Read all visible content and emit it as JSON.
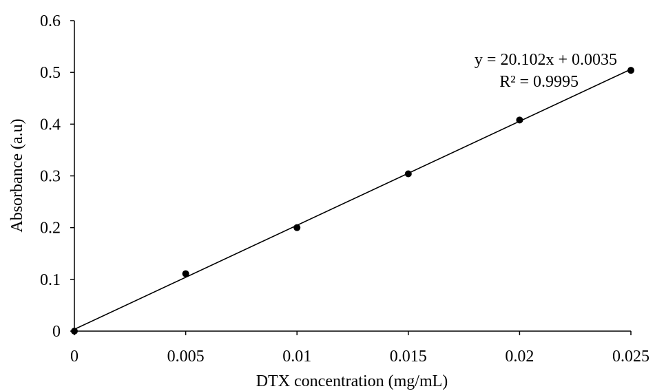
{
  "chart_data": {
    "type": "scatter",
    "title": "",
    "xlabel": "DTX concentration (mg/mL)",
    "ylabel": "Absorbance (a.u)",
    "xlim": [
      0,
      0.025
    ],
    "ylim": [
      0,
      0.6
    ],
    "x_ticks": [
      0,
      0.005,
      0.01,
      0.015,
      0.02,
      0.025
    ],
    "x_tick_labels": [
      "0",
      "0.005",
      "0.01",
      "0.015",
      "0.02",
      "0.025"
    ],
    "y_ticks": [
      0,
      0.1,
      0.2,
      0.3,
      0.4,
      0.5,
      0.6
    ],
    "y_tick_labels": [
      "0",
      "0.1",
      "0.2",
      "0.3",
      "0.4",
      "0.5",
      "0.6"
    ],
    "grid": false,
    "legend": "none",
    "series": [
      {
        "x": [
          0,
          0.005,
          0.01,
          0.015,
          0.02,
          0.025
        ],
        "y": [
          0,
          0.111,
          0.2,
          0.304,
          0.408,
          0.504
        ],
        "color": "#000000"
      }
    ],
    "trendline": {
      "type": "linear",
      "slope": 20.102,
      "intercept": 0.0035,
      "equation_label": "y = 20.102x + 0.0035",
      "r2_label": "R² = 0.9995",
      "color": "#000000"
    }
  }
}
